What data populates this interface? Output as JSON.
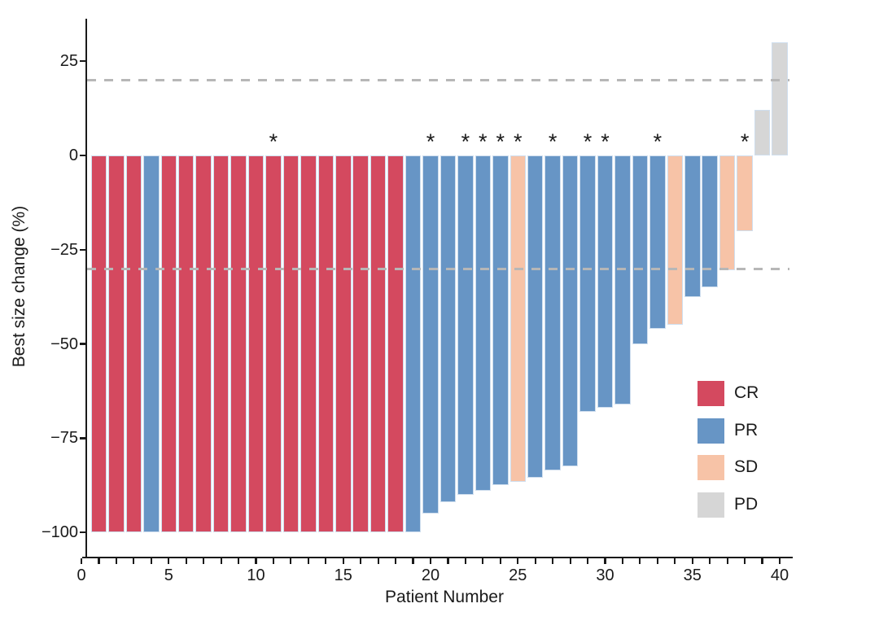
{
  "chart_data": {
    "type": "bar",
    "subtype": "waterfall",
    "title": "",
    "xlabel": "Patient Number",
    "ylabel": "Best size change (%)",
    "xlim": [
      0,
      41
    ],
    "ylim": [
      -108,
      36
    ],
    "grid": false,
    "x_major_ticks": [
      0,
      5,
      10,
      15,
      20,
      25,
      30,
      35,
      40
    ],
    "x_minor_tick_range": {
      "from": 0,
      "to": 40,
      "step": 1
    },
    "y_ticks": [
      {
        "value": 25,
        "label": "25"
      },
      {
        "value": 0,
        "label": "0"
      },
      {
        "value": -25,
        "label": "−25"
      },
      {
        "value": -50,
        "label": "−50"
      },
      {
        "value": -75,
        "label": "−75"
      },
      {
        "value": -100,
        "label": "−100"
      }
    ],
    "reference_lines": [
      {
        "value": 20,
        "style": "dashed"
      },
      {
        "value": -30,
        "style": "dashed"
      }
    ],
    "reference_line_color": "#b7b7b7",
    "axis_color": "#1a1a1a",
    "text_color": "#1a1a1a",
    "bar_border_color": "#cfdeee",
    "asterisk_marker": "*",
    "colors": {
      "CR": "#d4495f",
      "PR": "#6795c5",
      "SD": "#f7c3a7",
      "PD": "#d6d6d6"
    },
    "legend": {
      "position": "right-center",
      "entries": [
        {
          "code": "CR",
          "label": "CR"
        },
        {
          "code": "PR",
          "label": "PR"
        },
        {
          "code": "SD",
          "label": "SD"
        },
        {
          "code": "PD",
          "label": "PD"
        }
      ]
    },
    "points": [
      {
        "patient": 1,
        "value": -100,
        "response": "CR",
        "asterisk": false
      },
      {
        "patient": 2,
        "value": -100,
        "response": "CR",
        "asterisk": false
      },
      {
        "patient": 3,
        "value": -100,
        "response": "CR",
        "asterisk": false
      },
      {
        "patient": 4,
        "value": -100,
        "response": "PR",
        "asterisk": false
      },
      {
        "patient": 5,
        "value": -100,
        "response": "CR",
        "asterisk": false
      },
      {
        "patient": 6,
        "value": -100,
        "response": "CR",
        "asterisk": false
      },
      {
        "patient": 7,
        "value": -100,
        "response": "CR",
        "asterisk": false
      },
      {
        "patient": 8,
        "value": -100,
        "response": "CR",
        "asterisk": false
      },
      {
        "patient": 9,
        "value": -100,
        "response": "CR",
        "asterisk": false
      },
      {
        "patient": 10,
        "value": -100,
        "response": "CR",
        "asterisk": false
      },
      {
        "patient": 11,
        "value": -100,
        "response": "CR",
        "asterisk": true
      },
      {
        "patient": 12,
        "value": -100,
        "response": "CR",
        "asterisk": false
      },
      {
        "patient": 13,
        "value": -100,
        "response": "CR",
        "asterisk": false
      },
      {
        "patient": 14,
        "value": -100,
        "response": "CR",
        "asterisk": false
      },
      {
        "patient": 15,
        "value": -100,
        "response": "CR",
        "asterisk": false
      },
      {
        "patient": 16,
        "value": -100,
        "response": "CR",
        "asterisk": false
      },
      {
        "patient": 17,
        "value": -100,
        "response": "CR",
        "asterisk": false
      },
      {
        "patient": 18,
        "value": -100,
        "response": "CR",
        "asterisk": false
      },
      {
        "patient": 19,
        "value": -100,
        "response": "PR",
        "asterisk": false
      },
      {
        "patient": 20,
        "value": -95,
        "response": "PR",
        "asterisk": true
      },
      {
        "patient": 21,
        "value": -92,
        "response": "PR",
        "asterisk": false
      },
      {
        "patient": 22,
        "value": -90,
        "response": "PR",
        "asterisk": true
      },
      {
        "patient": 23,
        "value": -89,
        "response": "PR",
        "asterisk": true
      },
      {
        "patient": 24,
        "value": -87.5,
        "response": "PR",
        "asterisk": true
      },
      {
        "patient": 25,
        "value": -86.5,
        "response": "SD",
        "asterisk": true
      },
      {
        "patient": 26,
        "value": -85.5,
        "response": "PR",
        "asterisk": false
      },
      {
        "patient": 27,
        "value": -83.5,
        "response": "PR",
        "asterisk": true
      },
      {
        "patient": 28,
        "value": -82.5,
        "response": "PR",
        "asterisk": false
      },
      {
        "patient": 29,
        "value": -68,
        "response": "PR",
        "asterisk": true
      },
      {
        "patient": 30,
        "value": -67,
        "response": "PR",
        "asterisk": true
      },
      {
        "patient": 31,
        "value": -66,
        "response": "PR",
        "asterisk": false
      },
      {
        "patient": 32,
        "value": -50,
        "response": "PR",
        "asterisk": false
      },
      {
        "patient": 33,
        "value": -46,
        "response": "PR",
        "asterisk": true
      },
      {
        "patient": 34,
        "value": -45,
        "response": "SD",
        "asterisk": false
      },
      {
        "patient": 35,
        "value": -37.5,
        "response": "PR",
        "asterisk": false
      },
      {
        "patient": 36,
        "value": -35,
        "response": "PR",
        "asterisk": false
      },
      {
        "patient": 37,
        "value": -30.5,
        "response": "SD",
        "asterisk": false
      },
      {
        "patient": 38,
        "value": -20,
        "response": "SD",
        "asterisk": true
      },
      {
        "patient": 39,
        "value": 12,
        "response": "PD",
        "asterisk": false
      },
      {
        "patient": 40,
        "value": 30,
        "response": "PD",
        "asterisk": false
      }
    ]
  }
}
